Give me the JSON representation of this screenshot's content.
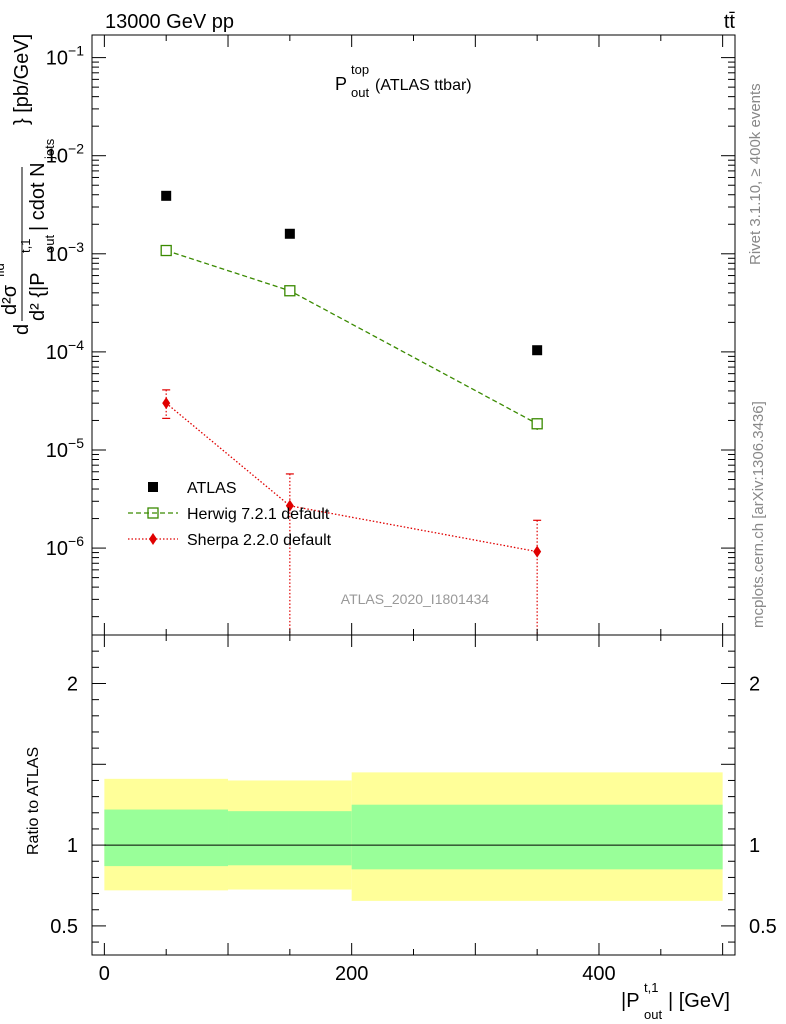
{
  "header": {
    "energy_label": "13000 GeV pp",
    "process_label": "tt̄"
  },
  "side_labels": {
    "rivet": "Rivet 3.1.10, ≥ 400k events",
    "mcplots": "mcplots.cern.ch [arXiv:1306.3436]"
  },
  "colors": {
    "data": "#000000",
    "herwig": "#3a8a00",
    "sherpa": "#e00000",
    "band_inner": "#99ff99",
    "band_outer": "#ffff99"
  },
  "chart_data": [
    {
      "type": "scatter",
      "panel": "main",
      "title_main": "P",
      "title_sup": "top",
      "title_sub": "out",
      "title_suffix": " (ATLAS ttbar)",
      "analysis_id": "ATLAS_2020_I1801434",
      "ylabel": "d²σ / d²{|P_out^t,1| cdot N_jets} [pb/GeV]",
      "ylabel_main": "d² {|P",
      "ylabel_end": "| cdot N",
      "ylabel_tail": "} [pb/GeV]",
      "ylabel_super": "t,1",
      "ylabel_sub": "out",
      "ylabel_sub2": "jets",
      "ylabel_num": "d²σ",
      "ylabel_num_sup": "fid",
      "ylabel_d": "d",
      "yscale": "log",
      "ylim": [
        1.3e-07,
        0.17
      ],
      "xlim": [
        -10,
        510
      ],
      "yticks": [
        {
          "value": 0.1,
          "label": "10",
          "exp": "−1"
        },
        {
          "value": 0.01,
          "label": "10",
          "exp": "−2"
        },
        {
          "value": 0.001,
          "label": "10",
          "exp": "−3"
        },
        {
          "value": 0.0001,
          "label": "10",
          "exp": "−4"
        },
        {
          "value": 1e-05,
          "label": "10",
          "exp": "−5"
        },
        {
          "value": 1e-06,
          "label": "10",
          "exp": "−6"
        }
      ],
      "legend_position": "lower-left",
      "series": [
        {
          "name": "ATLAS",
          "marker": "filled-square",
          "x": [
            50,
            150,
            350
          ],
          "y": [
            0.0039,
            0.0016,
            0.000104
          ],
          "xerr": [
            50,
            50,
            150
          ]
        },
        {
          "name": "Herwig 7.2.1 default",
          "marker": "open-square",
          "line": "dashed",
          "x": [
            50,
            150,
            350
          ],
          "y": [
            0.00108,
            0.00042,
            1.85e-05
          ],
          "yerr_low": [
            4e-05,
            2e-05,
            2.5e-06
          ],
          "yerr_high": [
            4e-05,
            2e-05,
            2.5e-06
          ]
        },
        {
          "name": "Sherpa 2.2.0 default",
          "marker": "diamond",
          "line": "dotted",
          "x": [
            50,
            150,
            350
          ],
          "y": [
            3e-05,
            2.7e-06,
            9.2e-07
          ],
          "yerr_low": [
            9e-06,
            2.7e-06,
            9.2e-07
          ],
          "yerr_high": [
            1.1e-05,
            3e-06,
            1e-06
          ]
        }
      ]
    },
    {
      "type": "area",
      "panel": "ratio",
      "ylabel": "Ratio to ATLAS",
      "ylim": [
        0.32,
        2.3
      ],
      "xlim": [
        -10,
        510
      ],
      "yticks": [
        0.5,
        1,
        2
      ],
      "xticks": [
        0,
        200,
        400
      ],
      "xlabel_main": "|P",
      "xlabel_sup": "t,1",
      "xlabel_sub": "out",
      "xlabel_suffix": "| [GeV]",
      "bins": [
        {
          "x_low": 0,
          "x_high": 100,
          "inner_low": 0.87,
          "inner_high": 1.22,
          "outer_low": 0.72,
          "outer_high": 1.41
        },
        {
          "x_low": 100,
          "x_high": 200,
          "inner_low": 0.875,
          "inner_high": 1.21,
          "outer_low": 0.725,
          "outer_high": 1.4
        },
        {
          "x_low": 200,
          "x_high": 500,
          "inner_low": 0.85,
          "inner_high": 1.25,
          "outer_low": 0.655,
          "outer_high": 1.45
        }
      ]
    }
  ]
}
